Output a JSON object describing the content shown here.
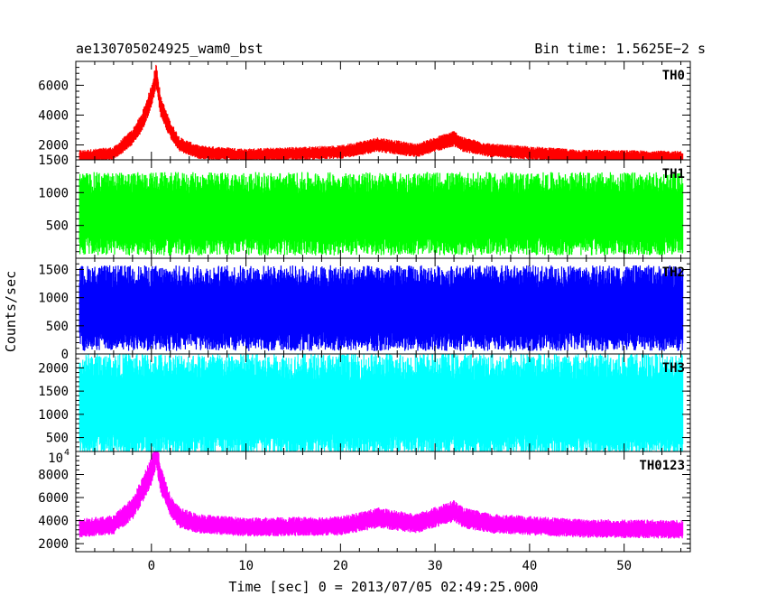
{
  "chart_data": {
    "type": "line",
    "title_left": "ae130705024925_wam0_bst",
    "title_right": "Bin time: 1.5625E−2 s",
    "xlabel": "Time [sec] 0 = 2013/07/05 02:49:25.000",
    "ylabel": "Counts/sec",
    "xlim": [
      -8,
      57
    ],
    "x_ticks": [
      0,
      10,
      20,
      30,
      40,
      50
    ],
    "x_tick_labels": [
      "0",
      "10",
      "20",
      "30",
      "40",
      "50"
    ],
    "data_x_range": [
      -7.6,
      56.2
    ],
    "bin_time": 0.015625,
    "panels": [
      {
        "name": "TH0",
        "color": "#ff0000",
        "ylim": [
          1000,
          7600
        ],
        "y_ticks": [
          2000,
          4000,
          6000
        ],
        "y_tick_labels": [
          "2000",
          "4000",
          "6000"
        ],
        "baseline": 1200,
        "noise": 280,
        "profile": [
          [
            -7.6,
            1200
          ],
          [
            -4,
            1400
          ],
          [
            -2,
            2500
          ],
          [
            -1,
            3500
          ],
          [
            0,
            5200
          ],
          [
            0.5,
            6600
          ],
          [
            1,
            4500
          ],
          [
            2,
            3000
          ],
          [
            3,
            2000
          ],
          [
            5,
            1500
          ],
          [
            10,
            1300
          ],
          [
            20,
            1500
          ],
          [
            24,
            2000
          ],
          [
            28,
            1600
          ],
          [
            32,
            2400
          ],
          [
            33,
            2000
          ],
          [
            36,
            1600
          ],
          [
            45,
            1250
          ],
          [
            56.2,
            1150
          ]
        ]
      },
      {
        "name": "TH1",
        "color": "#00ff00",
        "ylim": [
          0,
          1500
        ],
        "y_ticks": [
          500,
          1000,
          1500
        ],
        "y_tick_labels": [
          "500",
          "1000",
          "1500"
        ],
        "baseline": 0,
        "noise": 0,
        "profile": [
          [
            -7.6,
            650
          ],
          [
            56.2,
            650
          ]
        ]
      },
      {
        "name": "TH2",
        "color": "#0000ff",
        "ylim": [
          0,
          1700
        ],
        "y_ticks": [
          0,
          500,
          1000,
          1500
        ],
        "y_tick_labels": [
          "0",
          "500",
          "1000",
          "1500"
        ],
        "baseline": 0,
        "noise": 0,
        "profile": [
          [
            -7.6,
            780
          ],
          [
            56.2,
            780
          ]
        ]
      },
      {
        "name": "TH3",
        "color": "#00ffff",
        "ylim": [
          200,
          2300
        ],
        "y_ticks": [
          500,
          1000,
          1500,
          2000
        ],
        "y_tick_labels": [
          "500",
          "1000",
          "1500",
          "2000"
        ],
        "baseline": 0,
        "noise": 0,
        "profile": [
          [
            -7.6,
            1150
          ],
          [
            56.2,
            1150
          ]
        ]
      },
      {
        "name": "TH0123",
        "color": "#ff00ff",
        "ylim": [
          1300,
          10000
        ],
        "y_ticks": [
          2000,
          4000,
          6000,
          8000
        ],
        "y_tick_labels": [
          "2000",
          "4000",
          "6000",
          "8000"
        ],
        "y_top_label_mantissa": "10",
        "y_top_label_exponent": "4",
        "baseline": 3300,
        "noise": 450,
        "profile": [
          [
            -7.6,
            3300
          ],
          [
            -4,
            3600
          ],
          [
            -2,
            5000
          ],
          [
            -1,
            6500
          ],
          [
            0,
            8300
          ],
          [
            0.5,
            9800
          ],
          [
            1,
            7500
          ],
          [
            2,
            5200
          ],
          [
            3,
            4200
          ],
          [
            5,
            3700
          ],
          [
            10,
            3400
          ],
          [
            20,
            3500
          ],
          [
            24,
            4200
          ],
          [
            28,
            3700
          ],
          [
            32,
            4800
          ],
          [
            33,
            4200
          ],
          [
            36,
            3700
          ],
          [
            45,
            3300
          ],
          [
            56.2,
            3200
          ]
        ]
      }
    ]
  }
}
